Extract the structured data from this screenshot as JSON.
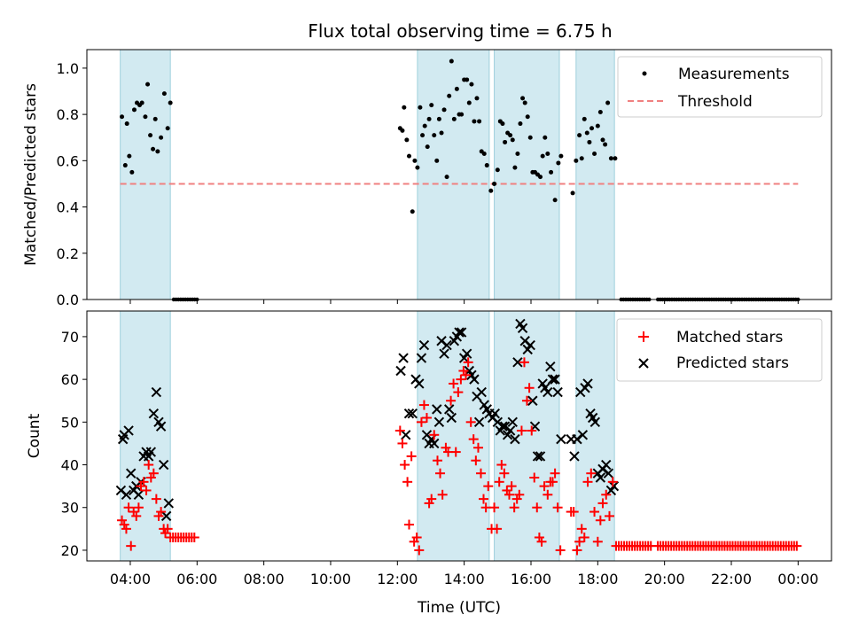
{
  "chart_data": [
    {
      "type": "scatter",
      "title": "Flux total observing time = 6.75 h",
      "xlabel": "",
      "ylabel": "Matched/Predicted stars",
      "x_unit": "hours UTC",
      "xlim": [
        2.7,
        25.0
      ],
      "ylim": [
        0.0,
        1.08
      ],
      "yticks": [
        0.0,
        0.2,
        0.4,
        0.6,
        0.8,
        1.0
      ],
      "ytick_labels": [
        "0.0",
        "0.2",
        "0.4",
        "0.6",
        "0.8",
        "1.0"
      ],
      "grid": false,
      "legend_position": "top-right",
      "observing_windows": [
        [
          3.7,
          5.2
        ],
        [
          12.6,
          14.75
        ],
        [
          14.9,
          16.85
        ],
        [
          17.35,
          18.5
        ]
      ],
      "series": [
        {
          "name": "Measurements",
          "marker": "dot",
          "color": "#000000",
          "x": [
            3.75,
            3.85,
            3.9,
            3.97,
            4.05,
            4.12,
            4.2,
            4.28,
            4.35,
            4.45,
            4.52,
            4.6,
            4.68,
            4.75,
            4.82,
            4.92,
            5.02,
            5.12,
            5.2,
            12.08,
            12.15,
            12.2,
            12.28,
            12.35,
            12.45,
            12.52,
            12.6,
            12.68,
            12.75,
            12.82,
            12.9,
            12.95,
            13.02,
            13.1,
            13.18,
            13.25,
            13.32,
            13.4,
            13.48,
            13.55,
            13.62,
            13.7,
            13.78,
            13.85,
            13.92,
            14.0,
            14.08,
            14.15,
            14.22,
            14.3,
            14.38,
            14.45,
            14.52,
            14.6,
            14.68,
            14.8,
            14.9,
            15.0,
            15.08,
            15.15,
            15.22,
            15.3,
            15.38,
            15.45,
            15.52,
            15.6,
            15.68,
            15.75,
            15.82,
            15.9,
            15.98,
            16.05,
            16.12,
            16.2,
            16.28,
            16.35,
            16.42,
            16.5,
            16.6,
            16.72,
            16.82,
            16.9,
            17.25,
            17.35,
            17.45,
            17.52,
            17.6,
            17.68,
            17.75,
            17.82,
            17.9,
            18.0,
            18.08,
            18.15,
            18.22,
            18.3,
            18.4,
            18.52
          ],
          "y": [
            0.79,
            0.58,
            0.76,
            0.62,
            0.55,
            0.82,
            0.85,
            0.84,
            0.85,
            0.79,
            0.93,
            0.71,
            0.65,
            0.78,
            0.64,
            0.7,
            0.89,
            0.74,
            0.85,
            0.74,
            0.73,
            0.83,
            0.69,
            0.62,
            0.38,
            0.6,
            0.57,
            0.83,
            0.71,
            0.75,
            0.66,
            0.78,
            0.84,
            0.71,
            0.6,
            0.78,
            0.72,
            0.82,
            0.53,
            0.88,
            1.03,
            0.78,
            0.91,
            0.8,
            0.8,
            0.95,
            0.95,
            0.85,
            0.93,
            0.77,
            0.87,
            0.77,
            0.64,
            0.63,
            0.58,
            0.47,
            0.5,
            0.56,
            0.77,
            0.76,
            0.68,
            0.72,
            0.71,
            0.69,
            0.57,
            0.63,
            0.76,
            0.87,
            0.85,
            0.79,
            0.7,
            0.55,
            0.55,
            0.54,
            0.53,
            0.62,
            0.7,
            0.63,
            0.55,
            0.43,
            0.59,
            0.62,
            0.46,
            0.6,
            0.71,
            0.61,
            0.78,
            0.72,
            0.68,
            0.74,
            0.63,
            0.75,
            0.81,
            0.69,
            0.67,
            0.85,
            0.61,
            0.61
          ]
        },
        {
          "name": "Threshold",
          "marker": "dashed-line",
          "color": "#f08080",
          "x": [
            3.7,
            24.0
          ],
          "y": [
            0.5,
            0.5
          ]
        }
      ],
      "zero_measurements": {
        "value": 0.0,
        "ranges": [
          [
            5.3,
            6.0
          ],
          [
            18.7,
            19.6
          ],
          [
            19.8,
            24.0
          ]
        ]
      }
    },
    {
      "type": "scatter",
      "title": "",
      "xlabel": "Time (UTC)",
      "ylabel": "Count",
      "x_unit": "hours UTC",
      "xlim": [
        2.7,
        25.0
      ],
      "ylim": [
        17.5,
        76
      ],
      "xticks": [
        4,
        6,
        8,
        10,
        12,
        14,
        16,
        18,
        20,
        22,
        24
      ],
      "xtick_labels": [
        "04:00",
        "06:00",
        "08:00",
        "10:00",
        "12:00",
        "14:00",
        "16:00",
        "18:00",
        "20:00",
        "22:00",
        "00:00"
      ],
      "yticks": [
        20,
        30,
        40,
        50,
        60,
        70
      ],
      "ytick_labels": [
        "20",
        "30",
        "40",
        "50",
        "60",
        "70"
      ],
      "grid": false,
      "legend_position": "top-right",
      "observing_windows": [
        [
          3.7,
          5.2
        ],
        [
          12.6,
          14.75
        ],
        [
          14.9,
          16.85
        ],
        [
          17.35,
          18.5
        ]
      ],
      "series": [
        {
          "name": "Matched stars",
          "marker": "plus",
          "color": "#ff0000",
          "x": [
            3.75,
            3.82,
            3.88,
            3.95,
            4.02,
            4.1,
            4.18,
            4.25,
            4.32,
            4.4,
            4.48,
            4.55,
            4.62,
            4.7,
            4.78,
            4.85,
            4.92,
            5.0,
            5.05,
            5.12,
            12.08,
            12.15,
            12.22,
            12.3,
            12.35,
            12.42,
            12.5,
            12.58,
            12.65,
            12.72,
            12.8,
            12.88,
            12.95,
            13.02,
            13.1,
            13.2,
            13.28,
            13.35,
            13.45,
            13.52,
            13.6,
            13.68,
            13.75,
            13.82,
            13.9,
            13.98,
            14.05,
            14.12,
            14.2,
            14.28,
            14.35,
            14.42,
            14.5,
            14.58,
            14.65,
            14.72,
            14.82,
            14.9,
            14.98,
            15.05,
            15.12,
            15.2,
            15.28,
            15.35,
            15.42,
            15.5,
            15.58,
            15.65,
            15.72,
            15.8,
            15.88,
            15.95,
            16.02,
            16.1,
            16.18,
            16.25,
            16.32,
            16.4,
            16.5,
            16.58,
            16.65,
            16.72,
            16.8,
            16.88,
            17.2,
            17.28,
            17.38,
            17.45,
            17.52,
            17.6,
            17.7,
            17.8,
            17.9,
            18.0,
            18.08,
            18.15,
            18.25,
            18.35,
            18.45
          ],
          "y": [
            27,
            26,
            25,
            30,
            21,
            29,
            28,
            30,
            35,
            36,
            34,
            40,
            37,
            38,
            32,
            28,
            29,
            25,
            24,
            25,
            48,
            45,
            40,
            36,
            26,
            42,
            22,
            23,
            20,
            50,
            54,
            51,
            31,
            32,
            47,
            41,
            38,
            33,
            44,
            43,
            55,
            59,
            43,
            57,
            60,
            62,
            61,
            64,
            50,
            46,
            41,
            44,
            38,
            32,
            30,
            35,
            25,
            30,
            25,
            36,
            40,
            38,
            34,
            33,
            35,
            30,
            32,
            33,
            48,
            64,
            55,
            58,
            48,
            37,
            30,
            23,
            22,
            35,
            33,
            36,
            36,
            38,
            30,
            20,
            29,
            29,
            20,
            22,
            25,
            23,
            36,
            38,
            29,
            22,
            27,
            31,
            33,
            28,
            36
          ]
        },
        {
          "name": "Predicted stars",
          "marker": "x",
          "color": "#000000",
          "x": [
            3.72,
            3.78,
            3.82,
            3.88,
            3.95,
            4.02,
            4.1,
            4.18,
            4.25,
            4.32,
            4.4,
            4.48,
            4.55,
            4.62,
            4.7,
            4.78,
            4.85,
            4.92,
            5.0,
            5.08,
            5.15,
            12.1,
            12.18,
            12.25,
            12.35,
            12.45,
            12.55,
            12.65,
            12.72,
            12.8,
            12.88,
            12.95,
            13.02,
            13.1,
            13.18,
            13.25,
            13.32,
            13.4,
            13.48,
            13.55,
            13.62,
            13.7,
            13.78,
            13.85,
            13.92,
            14.0,
            14.08,
            14.15,
            14.22,
            14.3,
            14.38,
            14.45,
            14.52,
            14.6,
            14.68,
            14.75,
            14.85,
            14.92,
            15.0,
            15.08,
            15.15,
            15.22,
            15.3,
            15.38,
            15.45,
            15.52,
            15.6,
            15.68,
            15.75,
            15.82,
            15.9,
            15.98,
            16.05,
            16.12,
            16.2,
            16.28,
            16.35,
            16.42,
            16.5,
            16.58,
            16.65,
            16.72,
            16.8,
            16.9,
            17.2,
            17.3,
            17.38,
            17.48,
            17.55,
            17.62,
            17.7,
            17.78,
            17.85,
            17.92,
            18.0,
            18.08,
            18.15,
            18.25,
            18.32,
            18.4,
            18.48
          ],
          "y": [
            34,
            46,
            47,
            33,
            48,
            38,
            34,
            35,
            33,
            36,
            42,
            43,
            42,
            43,
            52,
            57,
            50,
            49,
            40,
            28,
            31,
            62,
            65,
            47,
            52,
            52,
            60,
            59,
            65,
            68,
            47,
            45,
            46,
            45,
            53,
            50,
            69,
            66,
            68,
            53,
            51,
            69,
            70,
            71,
            71,
            65,
            66,
            62,
            61,
            60,
            56,
            50,
            57,
            54,
            53,
            52,
            51,
            52,
            50,
            48,
            49,
            49,
            47,
            48,
            50,
            46,
            64,
            73,
            72,
            69,
            67,
            68,
            55,
            49,
            42,
            42,
            59,
            58,
            57,
            63,
            60,
            60,
            57,
            46,
            46,
            42,
            46,
            57,
            47,
            58,
            59,
            52,
            51,
            50,
            38,
            37,
            39,
            40,
            38,
            34,
            35
          ]
        }
      ],
      "floor_matched": {
        "value": 23,
        "ranges": [
          [
            5.2,
            5.95
          ]
        ]
      },
      "floor_matched_late": {
        "value": 21,
        "ranges": [
          [
            18.55,
            19.6
          ],
          [
            19.8,
            24.0
          ]
        ]
      }
    }
  ]
}
